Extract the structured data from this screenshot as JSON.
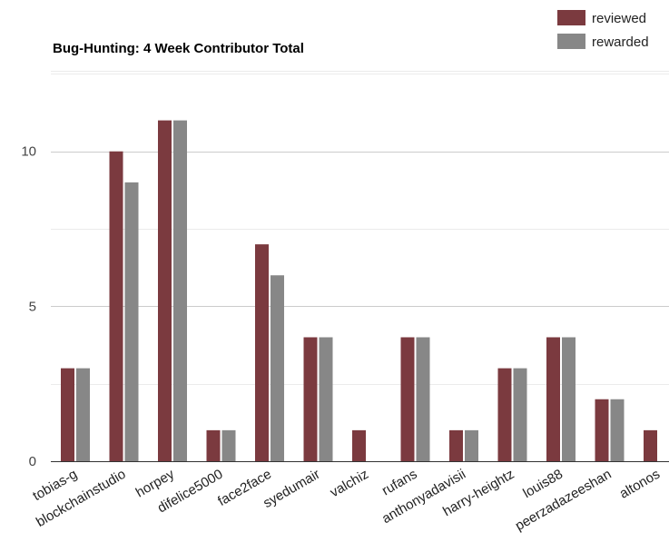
{
  "chart_data": {
    "type": "bar",
    "title": "Bug-Hunting: 4 Week Contributor Total",
    "xlabel": "",
    "ylabel": "",
    "ylim": [
      0,
      12.6
    ],
    "yticks": [
      0,
      5,
      10
    ],
    "grid": true,
    "legend_position": "top-right",
    "categories": [
      "tobias-g",
      "blockchainstudio",
      "horpey",
      "difelice5000",
      "face2face",
      "syedumair",
      "valchiz",
      "rufans",
      "anthonyadavisii",
      "harry-heightz",
      "louis88",
      "peerzadazeeshan",
      "altonos"
    ],
    "series": [
      {
        "name": "reviewed",
        "color": "#7b3a3f",
        "values": [
          3,
          10,
          11,
          1,
          7,
          4,
          1,
          4,
          1,
          3,
          4,
          2,
          1
        ]
      },
      {
        "name": "rewarded",
        "color": "#878787",
        "values": [
          3,
          9,
          11,
          1,
          6,
          4,
          0,
          4,
          1,
          3,
          4,
          2,
          0
        ]
      }
    ]
  }
}
